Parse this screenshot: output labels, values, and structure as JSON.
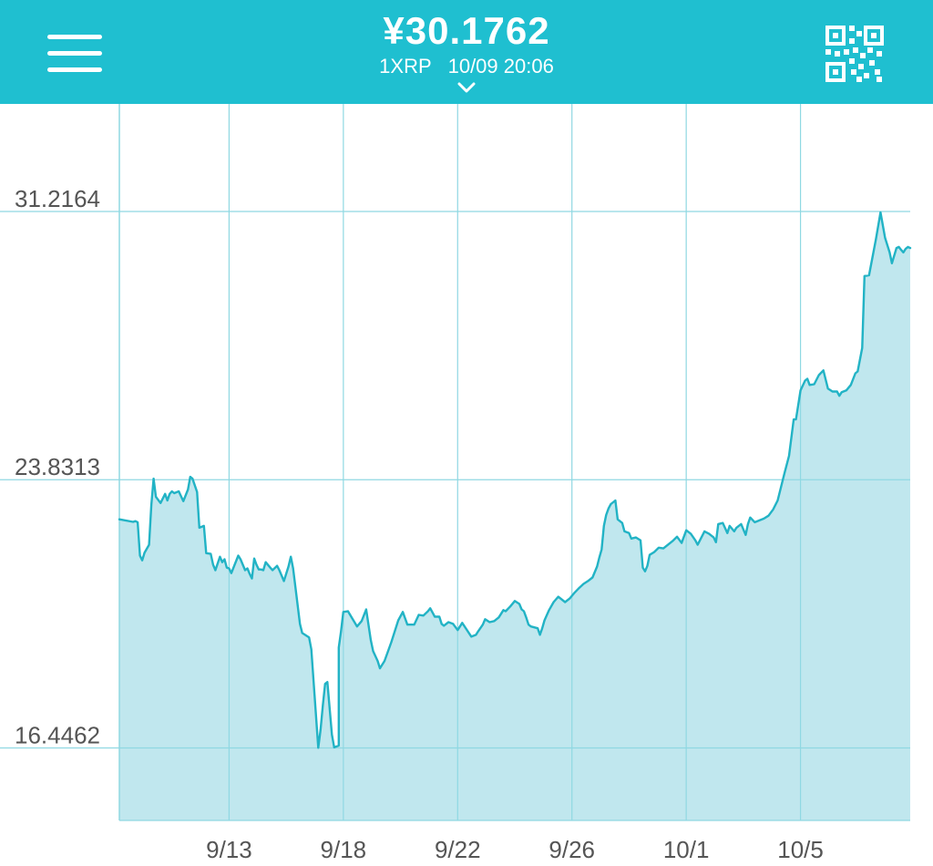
{
  "header": {
    "price": "¥30.1762",
    "unit": "1XRP",
    "datetime": "10/09 20:06",
    "menu_icon": "hamburger-menu-icon",
    "qr_icon": "qr-code-icon",
    "dropdown_icon": "chevron-down-icon"
  },
  "colors": {
    "header_bg": "#1fbfd0",
    "line": "#22b3c5",
    "fill": "#c0e7ee",
    "grid": "#8fd8e2"
  },
  "chart_data": {
    "type": "area",
    "title": "",
    "xlabel": "",
    "ylabel": "",
    "grid": true,
    "x_tick_labels": [
      "9/13",
      "9/18",
      "9/22",
      "9/26",
      "10/1",
      "10/5"
    ],
    "x_tick_positions": [
      4.8,
      9.8,
      14.8,
      19.8,
      24.8,
      29.8
    ],
    "x_range": [
      0,
      34.6
    ],
    "y_tick_labels": [
      "16.4462",
      "23.8313",
      "31.2164"
    ],
    "y_ticks": [
      16.4462,
      23.8313,
      31.2164
    ],
    "y_range": [
      14.45,
      33.55
    ],
    "series": [
      {
        "name": "",
        "points": [
          [
            0.0,
            22.74
          ],
          [
            0.6,
            22.67
          ],
          [
            0.7,
            22.69
          ],
          [
            0.8,
            22.66
          ],
          [
            0.9,
            21.74
          ],
          [
            1.0,
            21.61
          ],
          [
            1.1,
            21.82
          ],
          [
            1.3,
            22.04
          ],
          [
            1.4,
            23.14
          ],
          [
            1.5,
            23.86
          ],
          [
            1.6,
            23.36
          ],
          [
            1.8,
            23.19
          ],
          [
            2.0,
            23.44
          ],
          [
            2.1,
            23.26
          ],
          [
            2.2,
            23.44
          ],
          [
            2.3,
            23.51
          ],
          [
            2.4,
            23.46
          ],
          [
            2.6,
            23.51
          ],
          [
            2.8,
            23.24
          ],
          [
            3.0,
            23.56
          ],
          [
            3.1,
            23.91
          ],
          [
            3.2,
            23.86
          ],
          [
            3.4,
            23.49
          ],
          [
            3.5,
            22.51
          ],
          [
            3.7,
            22.56
          ],
          [
            3.8,
            21.81
          ],
          [
            4.0,
            21.79
          ],
          [
            4.1,
            21.49
          ],
          [
            4.2,
            21.34
          ],
          [
            4.4,
            21.71
          ],
          [
            4.5,
            21.56
          ],
          [
            4.6,
            21.64
          ],
          [
            4.7,
            21.41
          ],
          [
            4.8,
            21.39
          ],
          [
            4.9,
            21.26
          ],
          [
            5.2,
            21.74
          ],
          [
            5.3,
            21.64
          ],
          [
            5.5,
            21.34
          ],
          [
            5.6,
            21.39
          ],
          [
            5.7,
            21.24
          ],
          [
            5.8,
            21.11
          ],
          [
            5.9,
            21.66
          ],
          [
            6.0,
            21.49
          ],
          [
            6.1,
            21.36
          ],
          [
            6.2,
            21.36
          ],
          [
            6.3,
            21.34
          ],
          [
            6.4,
            21.56
          ],
          [
            6.6,
            21.41
          ],
          [
            6.7,
            21.34
          ],
          [
            6.9,
            21.46
          ],
          [
            7.0,
            21.34
          ],
          [
            7.2,
            21.04
          ],
          [
            7.4,
            21.44
          ],
          [
            7.5,
            21.71
          ],
          [
            7.6,
            21.39
          ],
          [
            7.9,
            19.86
          ],
          [
            8.0,
            19.61
          ],
          [
            8.3,
            19.49
          ],
          [
            8.4,
            19.16
          ],
          [
            8.7,
            16.45
          ],
          [
            8.8,
            16.94
          ],
          [
            8.9,
            17.61
          ],
          [
            9.0,
            18.21
          ],
          [
            9.1,
            18.26
          ],
          [
            9.3,
            16.81
          ],
          [
            9.4,
            16.46
          ],
          [
            9.6,
            16.51
          ],
          [
            9.6,
            19.21
          ],
          [
            9.7,
            19.66
          ],
          [
            9.8,
            20.19
          ],
          [
            10.0,
            20.21
          ],
          [
            10.4,
            19.79
          ],
          [
            10.6,
            19.94
          ],
          [
            10.8,
            20.26
          ],
          [
            11.0,
            19.41
          ],
          [
            11.1,
            19.11
          ],
          [
            11.3,
            18.84
          ],
          [
            11.4,
            18.64
          ],
          [
            11.6,
            18.84
          ],
          [
            11.9,
            19.36
          ],
          [
            12.2,
            19.96
          ],
          [
            12.4,
            20.19
          ],
          [
            12.6,
            19.84
          ],
          [
            12.9,
            19.84
          ],
          [
            13.1,
            20.11
          ],
          [
            13.3,
            20.09
          ],
          [
            13.5,
            20.21
          ],
          [
            13.6,
            20.29
          ],
          [
            13.8,
            20.06
          ],
          [
            14.0,
            20.06
          ],
          [
            14.1,
            19.86
          ],
          [
            14.2,
            19.81
          ],
          [
            14.4,
            19.91
          ],
          [
            14.6,
            19.86
          ],
          [
            14.8,
            19.69
          ],
          [
            15.0,
            19.89
          ],
          [
            15.4,
            19.51
          ],
          [
            15.6,
            19.56
          ],
          [
            15.7,
            19.66
          ],
          [
            15.9,
            19.84
          ],
          [
            16.0,
            19.99
          ],
          [
            16.2,
            19.91
          ],
          [
            16.4,
            19.94
          ],
          [
            16.6,
            20.04
          ],
          [
            16.8,
            20.24
          ],
          [
            16.9,
            20.21
          ],
          [
            17.1,
            20.34
          ],
          [
            17.3,
            20.49
          ],
          [
            17.5,
            20.41
          ],
          [
            17.6,
            20.26
          ],
          [
            17.7,
            20.21
          ],
          [
            17.8,
            20.04
          ],
          [
            17.9,
            19.84
          ],
          [
            18.0,
            19.79
          ],
          [
            18.3,
            19.74
          ],
          [
            18.4,
            19.56
          ],
          [
            18.5,
            19.74
          ],
          [
            18.6,
            19.96
          ],
          [
            18.8,
            20.24
          ],
          [
            19.0,
            20.46
          ],
          [
            19.2,
            20.61
          ],
          [
            19.5,
            20.46
          ],
          [
            19.7,
            20.56
          ],
          [
            19.9,
            20.71
          ],
          [
            20.1,
            20.84
          ],
          [
            20.3,
            20.96
          ],
          [
            20.5,
            21.04
          ],
          [
            20.7,
            21.14
          ],
          [
            20.9,
            21.44
          ],
          [
            21.0,
            21.69
          ],
          [
            21.1,
            21.91
          ],
          [
            21.2,
            22.56
          ],
          [
            21.3,
            22.86
          ],
          [
            21.4,
            23.04
          ],
          [
            21.5,
            23.16
          ],
          [
            21.7,
            23.26
          ],
          [
            21.8,
            22.74
          ],
          [
            22.0,
            22.64
          ],
          [
            22.1,
            22.41
          ],
          [
            22.3,
            22.36
          ],
          [
            22.4,
            22.21
          ],
          [
            22.6,
            22.24
          ],
          [
            22.8,
            22.16
          ],
          [
            22.9,
            21.41
          ],
          [
            23.0,
            21.31
          ],
          [
            23.1,
            21.46
          ],
          [
            23.2,
            21.76
          ],
          [
            23.4,
            21.84
          ],
          [
            23.6,
            21.96
          ],
          [
            23.8,
            21.94
          ],
          [
            24.0,
            22.04
          ],
          [
            24.2,
            22.14
          ],
          [
            24.4,
            22.26
          ],
          [
            24.6,
            22.09
          ],
          [
            24.8,
            22.44
          ],
          [
            25.0,
            22.34
          ],
          [
            25.2,
            22.16
          ],
          [
            25.3,
            22.04
          ],
          [
            25.6,
            22.41
          ],
          [
            25.8,
            22.34
          ],
          [
            26.0,
            22.24
          ],
          [
            26.1,
            22.11
          ],
          [
            26.2,
            22.61
          ],
          [
            26.4,
            22.64
          ],
          [
            26.6,
            22.36
          ],
          [
            26.7,
            22.56
          ],
          [
            26.9,
            22.41
          ],
          [
            27.0,
            22.51
          ],
          [
            27.2,
            22.61
          ],
          [
            27.4,
            22.31
          ],
          [
            27.5,
            22.61
          ],
          [
            27.6,
            22.79
          ],
          [
            27.8,
            22.66
          ],
          [
            28.0,
            22.71
          ],
          [
            28.2,
            22.76
          ],
          [
            28.4,
            22.84
          ],
          [
            28.6,
            23.01
          ],
          [
            28.8,
            23.26
          ],
          [
            29.1,
            24.01
          ],
          [
            29.3,
            24.49
          ],
          [
            29.5,
            25.49
          ],
          [
            29.6,
            25.49
          ],
          [
            29.8,
            26.29
          ],
          [
            30.0,
            26.56
          ],
          [
            30.1,
            26.61
          ],
          [
            30.2,
            26.44
          ],
          [
            30.4,
            26.46
          ],
          [
            30.6,
            26.71
          ],
          [
            30.8,
            26.84
          ],
          [
            31.0,
            26.34
          ],
          [
            31.2,
            26.26
          ],
          [
            31.4,
            26.26
          ],
          [
            31.5,
            26.14
          ],
          [
            31.6,
            26.24
          ],
          [
            31.8,
            26.29
          ],
          [
            32.0,
            26.44
          ],
          [
            32.2,
            26.76
          ],
          [
            32.3,
            26.81
          ],
          [
            32.5,
            27.46
          ],
          [
            32.6,
            29.44
          ],
          [
            32.8,
            29.46
          ],
          [
            33.1,
            30.46
          ],
          [
            33.3,
            31.19
          ],
          [
            33.5,
            30.49
          ],
          [
            33.7,
            30.09
          ],
          [
            33.8,
            29.79
          ],
          [
            34.0,
            30.21
          ],
          [
            34.1,
            30.24
          ],
          [
            34.2,
            30.16
          ],
          [
            34.3,
            30.09
          ],
          [
            34.4,
            30.19
          ],
          [
            34.5,
            30.24
          ],
          [
            34.6,
            30.21
          ]
        ]
      }
    ]
  }
}
